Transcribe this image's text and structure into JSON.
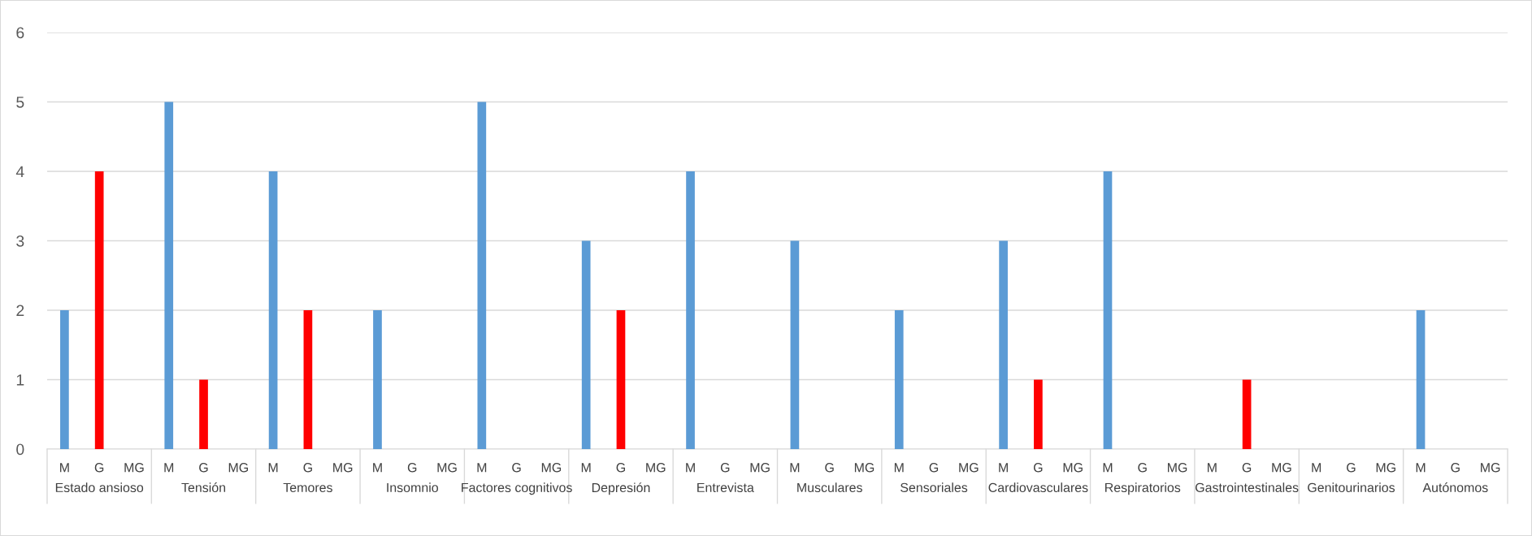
{
  "chart_data": {
    "type": "bar",
    "categories": [
      "M",
      "G",
      "MG",
      "M",
      "G",
      "MG",
      "M",
      "G",
      "MG",
      "M",
      "G",
      "MG",
      "M",
      "G",
      "MG",
      "M",
      "G",
      "MG",
      "M",
      "G",
      "MG",
      "M",
      "G",
      "MG",
      "M",
      "G",
      "MG",
      "M",
      "G",
      "MG",
      "M",
      "G",
      "MG",
      "M",
      "G",
      "MG",
      "M",
      "G",
      "MG",
      "M",
      "G",
      "MG"
    ],
    "values": [
      2,
      4,
      null,
      5,
      1,
      null,
      4,
      2,
      null,
      2,
      null,
      null,
      5,
      null,
      null,
      3,
      2,
      null,
      4,
      null,
      null,
      3,
      null,
      null,
      2,
      null,
      null,
      3,
      1,
      null,
      4,
      null,
      null,
      null,
      1,
      null,
      null,
      null,
      null,
      2,
      null,
      null
    ],
    "colors": [
      "#5b9bd5",
      "#ff0000",
      null,
      "#5b9bd5",
      "#ff0000",
      null,
      "#5b9bd5",
      "#ff0000",
      null,
      "#5b9bd5",
      null,
      null,
      "#5b9bd5",
      null,
      null,
      "#5b9bd5",
      "#ff0000",
      null,
      "#5b9bd5",
      null,
      null,
      "#5b9bd5",
      null,
      null,
      "#5b9bd5",
      null,
      null,
      "#5b9bd5",
      "#ff0000",
      null,
      "#5b9bd5",
      null,
      null,
      null,
      "#ff0000",
      null,
      null,
      null,
      null,
      "#5b9bd5",
      null,
      null
    ],
    "annotations": [
      "Estado ansioso",
      "Tensión",
      "Temores",
      "Insomnio",
      "Factores cognitivos",
      "Depresión",
      "Entrevista",
      "Musculares",
      "Sensoriales",
      "Cardiovasculares",
      "Respiratorios",
      "Gastrointestinales",
      "Genitourinarios",
      "Autónomos"
    ],
    "ylim": [
      0,
      6
    ],
    "yticks": [
      0,
      1,
      2,
      3,
      4,
      5,
      6
    ],
    "grid": "y",
    "legend": false
  }
}
